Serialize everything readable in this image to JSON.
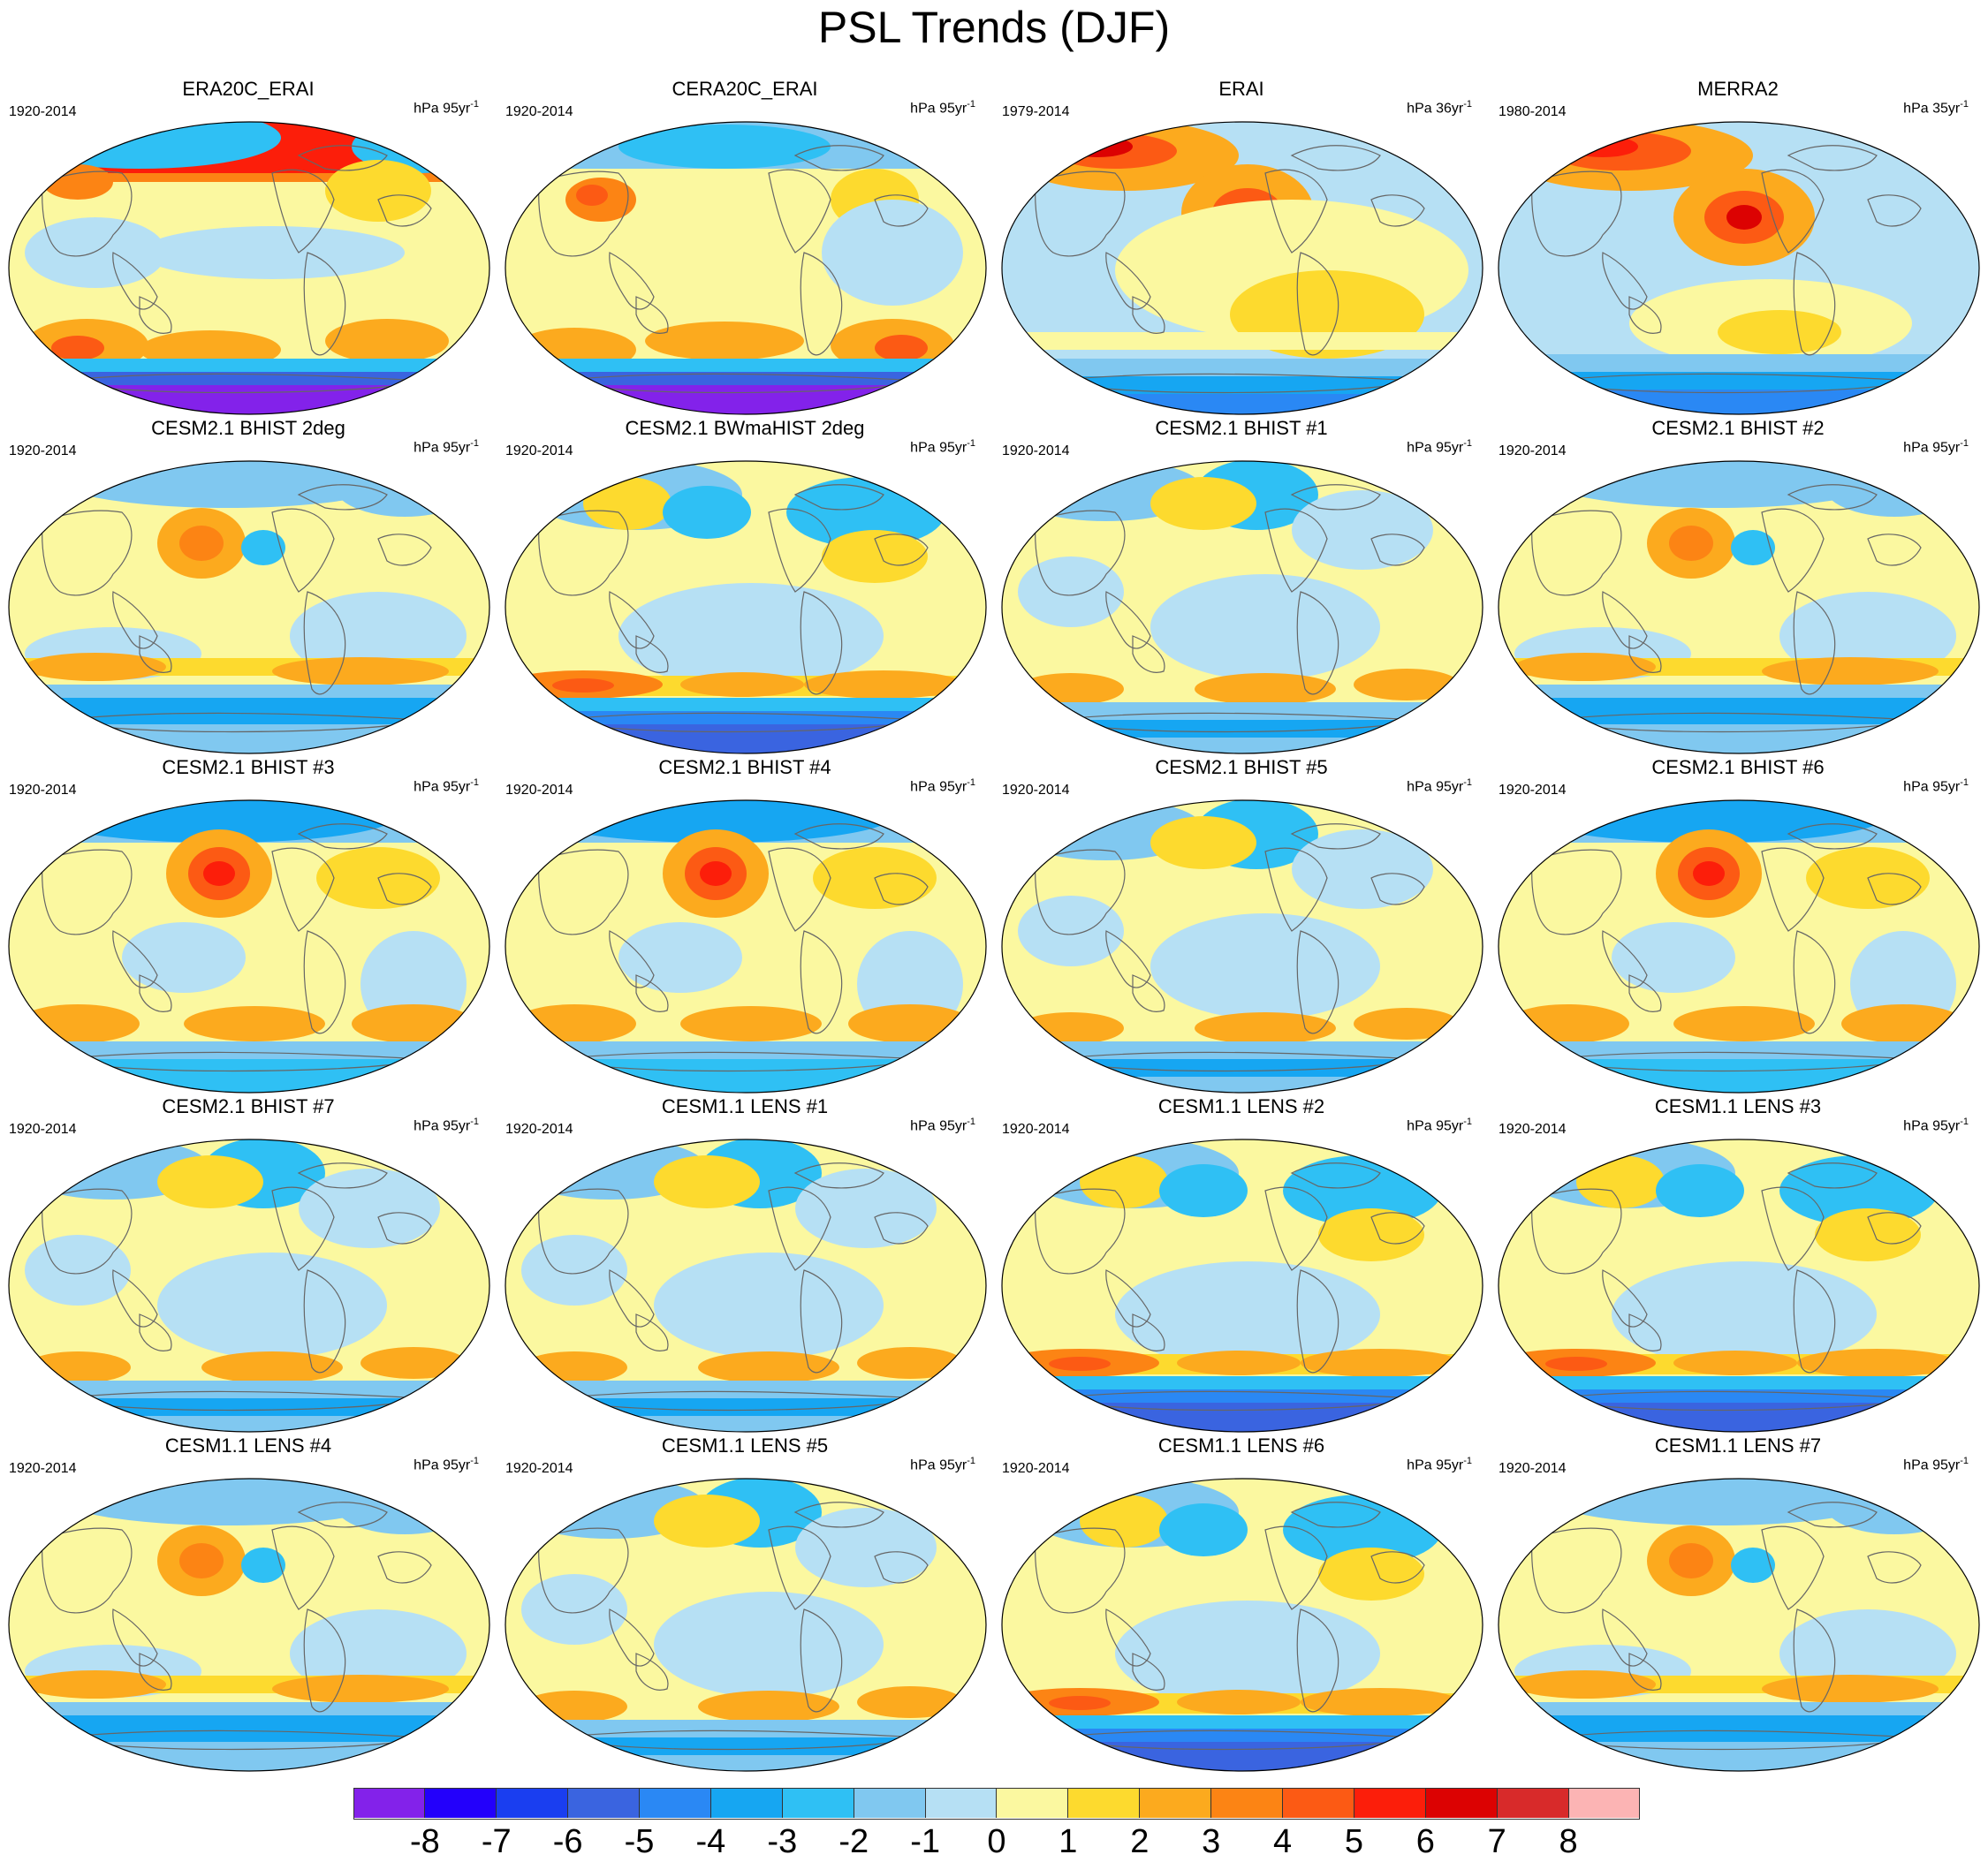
{
  "figure": {
    "title": "PSL Trends (DJF)"
  },
  "panels": [
    {
      "title": "ERA20C_ERAI",
      "period": "1920-2014",
      "units_prefix": "hPa ",
      "units_num": "95yr",
      "units_exp": "-1",
      "pattern": "era20c"
    },
    {
      "title": "CERA20C_ERAI",
      "period": "1920-2014",
      "units_prefix": "hPa ",
      "units_num": "95yr",
      "units_exp": "-1",
      "pattern": "cera20c"
    },
    {
      "title": "ERAI",
      "period": "1979-2014",
      "units_prefix": "hPa ",
      "units_num": "36yr",
      "units_exp": "-1",
      "pattern": "erai"
    },
    {
      "title": "MERRA2",
      "period": "1980-2014",
      "units_prefix": "hPa ",
      "units_num": "35yr",
      "units_exp": "-1",
      "pattern": "merra2"
    },
    {
      "title": "CESM2.1 BHIST 2deg",
      "period": "1920-2014",
      "units_prefix": "hPa ",
      "units_num": "95yr",
      "units_exp": "-1",
      "pattern": "model_a"
    },
    {
      "title": "CESM2.1 BWmaHIST 2deg",
      "period": "1920-2014",
      "units_prefix": "hPa ",
      "units_num": "95yr",
      "units_exp": "-1",
      "pattern": "model_strong"
    },
    {
      "title": "CESM2.1 BHIST #1",
      "period": "1920-2014",
      "units_prefix": "hPa ",
      "units_num": "95yr",
      "units_exp": "-1",
      "pattern": "model_b"
    },
    {
      "title": "CESM2.1 BHIST #2",
      "period": "1920-2014",
      "units_prefix": "hPa ",
      "units_num": "95yr",
      "units_exp": "-1",
      "pattern": "model_a"
    },
    {
      "title": "CESM2.1 BHIST #3",
      "period": "1920-2014",
      "units_prefix": "hPa ",
      "units_num": "95yr",
      "units_exp": "-1",
      "pattern": "model_aleutian"
    },
    {
      "title": "CESM2.1 BHIST #4",
      "period": "1920-2014",
      "units_prefix": "hPa ",
      "units_num": "95yr",
      "units_exp": "-1",
      "pattern": "model_aleutian"
    },
    {
      "title": "CESM2.1 BHIST #5",
      "period": "1920-2014",
      "units_prefix": "hPa ",
      "units_num": "95yr",
      "units_exp": "-1",
      "pattern": "model_b"
    },
    {
      "title": "CESM2.1 BHIST #6",
      "period": "1920-2014",
      "units_prefix": "hPa ",
      "units_num": "95yr",
      "units_exp": "-1",
      "pattern": "model_aleutian"
    },
    {
      "title": "CESM2.1 BHIST #7",
      "period": "1920-2014",
      "units_prefix": "hPa ",
      "units_num": "95yr",
      "units_exp": "-1",
      "pattern": "model_b"
    },
    {
      "title": "CESM1.1 LENS #1",
      "period": "1920-2014",
      "units_prefix": "hPa ",
      "units_num": "95yr",
      "units_exp": "-1",
      "pattern": "model_b"
    },
    {
      "title": "CESM1.1 LENS #2",
      "period": "1920-2014",
      "units_prefix": "hPa ",
      "units_num": "95yr",
      "units_exp": "-1",
      "pattern": "model_strong"
    },
    {
      "title": "CESM1.1 LENS #3",
      "period": "1920-2014",
      "units_prefix": "hPa ",
      "units_num": "95yr",
      "units_exp": "-1",
      "pattern": "model_strong"
    },
    {
      "title": "CESM1.1 LENS #4",
      "period": "1920-2014",
      "units_prefix": "hPa ",
      "units_num": "95yr",
      "units_exp": "-1",
      "pattern": "model_a"
    },
    {
      "title": "CESM1.1 LENS #5",
      "period": "1920-2014",
      "units_prefix": "hPa ",
      "units_num": "95yr",
      "units_exp": "-1",
      "pattern": "model_b"
    },
    {
      "title": "CESM1.1 LENS #6",
      "period": "1920-2014",
      "units_prefix": "hPa ",
      "units_num": "95yr",
      "units_exp": "-1",
      "pattern": "model_strong"
    },
    {
      "title": "CESM1.1 LENS #7",
      "period": "1920-2014",
      "units_prefix": "hPa ",
      "units_num": "95yr",
      "units_exp": "-1",
      "pattern": "model_a"
    }
  ],
  "colorbar": {
    "colors": [
      "#8322ea",
      "#2300fb",
      "#1a3ef0",
      "#3a64e0",
      "#2a88f4",
      "#16a6f2",
      "#2fc0f4",
      "#80c8f0",
      "#b6e0f4",
      "#fbf8a0",
      "#fdda2e",
      "#fcaa1e",
      "#fc8414",
      "#fc5a14",
      "#fc1e0a",
      "#dc0202",
      "#d82a2a",
      "#fcb4b4"
    ],
    "labels": [
      "-8",
      "-7",
      "-6",
      "-5",
      "-4",
      "-3",
      "-2",
      "-1",
      "0",
      "1",
      "2",
      "3",
      "4",
      "5",
      "6",
      "7",
      "8"
    ]
  },
  "style": {
    "background_level": "#fbf8a0",
    "coastline": "#666666"
  }
}
